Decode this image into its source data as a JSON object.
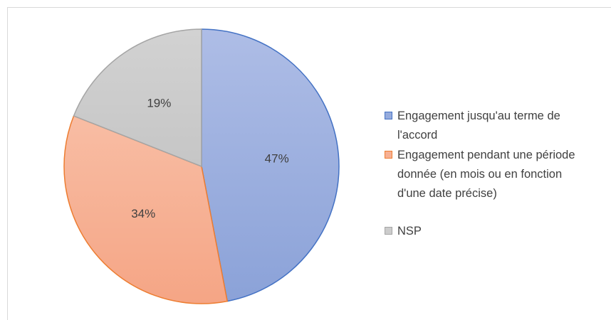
{
  "chart_data": {
    "type": "pie",
    "categories": [
      "Engagement jusqu'au terme de l'accord",
      "Engagement pendant une période donnée (en mois ou en fonction d'une date précise)",
      "NSP"
    ],
    "values": [
      47,
      34,
      19
    ],
    "value_labels": [
      "47%",
      "34%",
      "19%"
    ],
    "colors": [
      "#95abdd",
      "#f7b093",
      "#cccccc"
    ],
    "legend": "right"
  }
}
